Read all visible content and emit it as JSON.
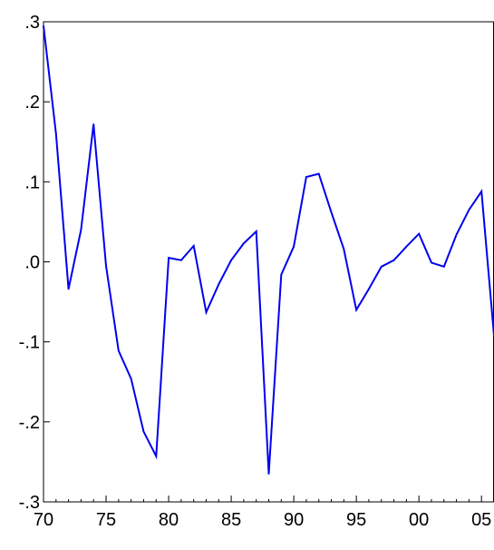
{
  "chart_data": {
    "type": "line",
    "title": "",
    "xlabel": "",
    "ylabel": "",
    "xlim": [
      1970,
      2006
    ],
    "ylim": [
      -0.3,
      0.3
    ],
    "grid": false,
    "legend": "none",
    "x_ticks": [
      {
        "value": 1970,
        "label": "70"
      },
      {
        "value": 1975,
        "label": "75"
      },
      {
        "value": 1980,
        "label": "80"
      },
      {
        "value": 1985,
        "label": "85"
      },
      {
        "value": 1990,
        "label": "90"
      },
      {
        "value": 1995,
        "label": "95"
      },
      {
        "value": 2000,
        "label": "00"
      },
      {
        "value": 2005,
        "label": "05"
      }
    ],
    "y_ticks": [
      {
        "value": 0.3,
        "label": ".3"
      },
      {
        "value": 0.2,
        "label": ".2"
      },
      {
        "value": 0.1,
        "label": ".1"
      },
      {
        "value": 0.0,
        "label": ".0"
      },
      {
        "value": -0.1,
        "label": "-.1"
      },
      {
        "value": -0.2,
        "label": "-.2"
      },
      {
        "value": -0.3,
        "label": "-.3"
      }
    ],
    "series": [
      {
        "color": "#0000ee",
        "x": [
          1970,
          1971,
          1972,
          1973,
          1974,
          1975,
          1976,
          1977,
          1978,
          1979,
          1980,
          1981,
          1982,
          1983,
          1984,
          1985,
          1986,
          1987,
          1988,
          1989,
          1990,
          1991,
          1992,
          1993,
          1994,
          1995,
          1996,
          1997,
          1998,
          1999,
          2000,
          2001,
          2002,
          2003,
          2004,
          2005,
          2006
        ],
        "y": [
          0.295,
          0.16,
          -0.034,
          0.04,
          0.172,
          -0.005,
          -0.111,
          -0.146,
          -0.212,
          -0.243,
          0.005,
          0.002,
          0.02,
          -0.063,
          -0.028,
          0.002,
          0.023,
          0.038,
          -0.265,
          -0.016,
          0.019,
          0.106,
          0.11,
          0.062,
          0.016,
          -0.06,
          -0.034,
          -0.006,
          0.002,
          0.019,
          0.035,
          -0.001,
          -0.006,
          0.034,
          0.065,
          0.088,
          -0.092
        ]
      }
    ]
  }
}
